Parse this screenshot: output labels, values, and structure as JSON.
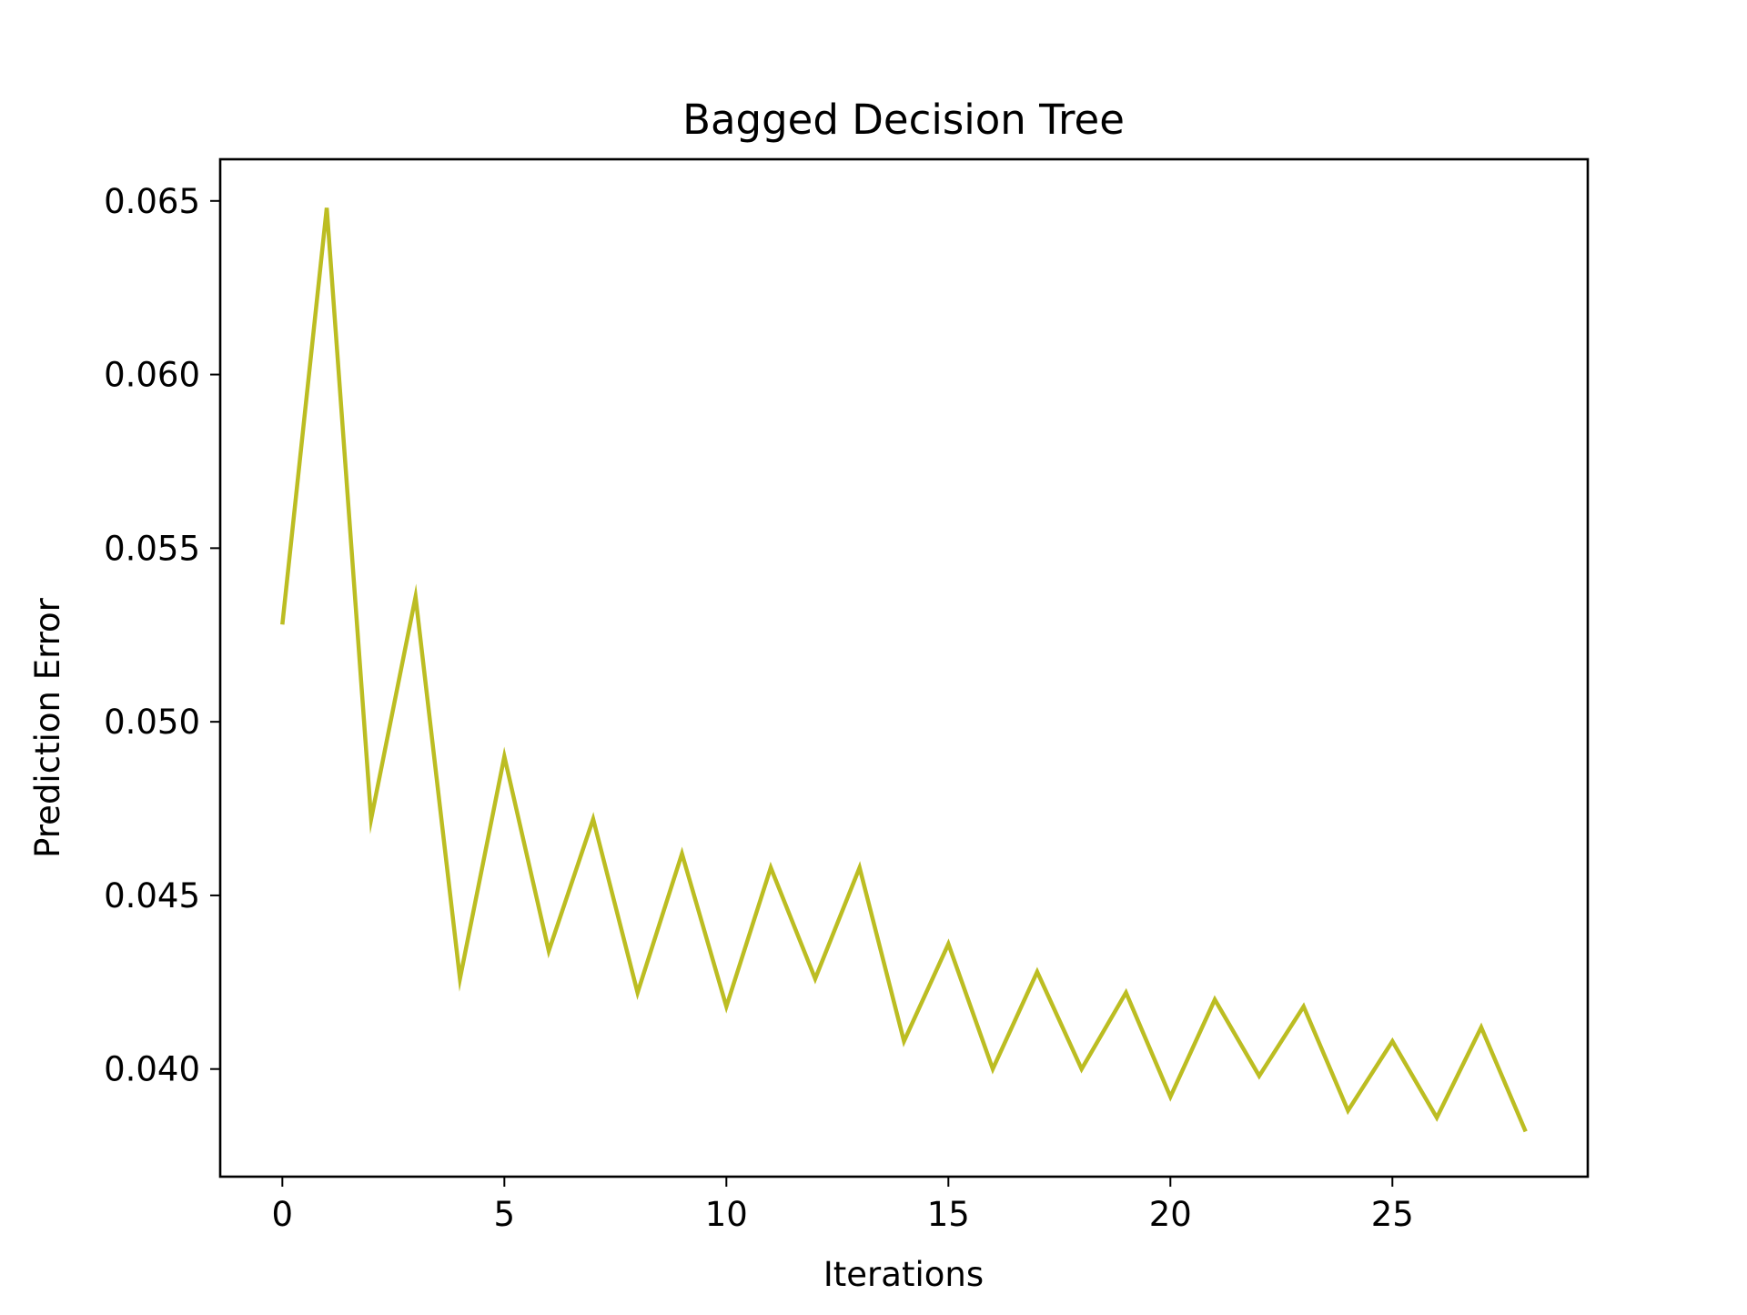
{
  "chart_data": {
    "type": "line",
    "title": "Bagged Decision Tree",
    "xlabel": "Iterations",
    "ylabel": "Prediction Error",
    "xlim": [
      -1.4,
      29.4
    ],
    "ylim": [
      0.0369,
      0.0662
    ],
    "xticks": [
      0,
      5,
      10,
      15,
      20,
      25
    ],
    "xtick_labels": [
      "0",
      "5",
      "10",
      "15",
      "20",
      "25"
    ],
    "yticks": [
      0.04,
      0.045,
      0.05,
      0.055,
      0.06,
      0.065
    ],
    "ytick_labels": [
      "0.040",
      "0.045",
      "0.050",
      "0.055",
      "0.060",
      "0.065"
    ],
    "grid": false,
    "series": [
      {
        "color": "#bcbd22",
        "x": [
          0,
          1,
          2,
          3,
          4,
          5,
          6,
          7,
          8,
          9,
          10,
          11,
          12,
          13,
          14,
          15,
          16,
          17,
          18,
          19,
          20,
          21,
          22,
          23,
          24,
          25,
          26,
          27,
          28
        ],
        "values": [
          0.0528,
          0.0648,
          0.0472,
          0.0536,
          0.0426,
          0.049,
          0.0434,
          0.0472,
          0.0422,
          0.0462,
          0.0418,
          0.0458,
          0.0426,
          0.0458,
          0.0408,
          0.0436,
          0.04,
          0.0428,
          0.04,
          0.0422,
          0.0392,
          0.042,
          0.0398,
          0.0418,
          0.0388,
          0.0408,
          0.0386,
          0.0412,
          0.0382
        ]
      }
    ]
  }
}
